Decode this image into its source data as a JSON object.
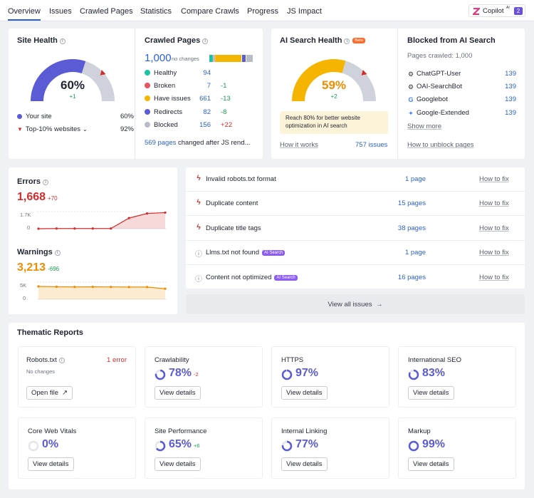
{
  "nav": {
    "tabs": [
      "Overview",
      "Issues",
      "Crawled Pages",
      "Statistics",
      "Compare Crawls",
      "Progress",
      "JS Impact"
    ],
    "copilot_label": "Copilot",
    "copilot_sup": "AI",
    "copilot_count": "2"
  },
  "site_health": {
    "title": "Site Health",
    "value": "60%",
    "change": "+1",
    "level": 0.6,
    "your_site_label": "Your site",
    "your_site_value": "60%",
    "top_label": "Top-10% websites",
    "top_value": "92%",
    "colors": {
      "main": "#5b5bd6",
      "rest": "#cfd2da"
    }
  },
  "crawled_pages": {
    "title": "Crawled Pages",
    "total": "1,000",
    "total_note": "no changes",
    "rows": [
      {
        "label": "Healthy",
        "value": "94",
        "delta": "",
        "color": "#1bc3a0"
      },
      {
        "label": "Broken",
        "value": "7",
        "delta": "-1",
        "color": "#e25563"
      },
      {
        "label": "Have issues",
        "value": "661",
        "delta": "-13",
        "color": "#f2b600"
      },
      {
        "label": "Redirects",
        "value": "82",
        "delta": "-8",
        "color": "#5b5bd6"
      },
      {
        "label": "Blocked",
        "value": "156",
        "delta": "+22",
        "color": "#b8bcc6"
      }
    ],
    "js_link": "569 pages",
    "js_text": "changed after JS rend..."
  },
  "ai_health": {
    "title": "AI Search Health",
    "beta": "Beta",
    "value": "59%",
    "change": "+2",
    "level": 0.59,
    "note": "Reach 80% for better website optimization in AI search",
    "how_link": "How it works",
    "issues_link": "757 issues",
    "colors": {
      "main": "#f5b400",
      "rest": "#cfd2da"
    }
  },
  "blocked_ai": {
    "title": "Blocked from AI Search",
    "crawled": "Pages crawled: 1,000",
    "rows": [
      {
        "label": "ChatGPT-User",
        "value": "139",
        "icon": "chatgpt-icon"
      },
      {
        "label": "OAI-SearchBot",
        "value": "139",
        "icon": "openai-icon"
      },
      {
        "label": "Googlebot",
        "value": "139",
        "icon": "google-icon"
      },
      {
        "label": "Google-Extended",
        "value": "139",
        "icon": "gemini-icon"
      }
    ],
    "show_more": "Show more",
    "unblock": "How to unblock pages"
  },
  "errors": {
    "title": "Errors",
    "value": "1,668",
    "delta": "+70",
    "ytick_top": "1.7K",
    "ytick_bottom": "0",
    "color": "#d42c2c"
  },
  "warnings": {
    "title": "Warnings",
    "value": "3,213",
    "delta": "-696",
    "ytick_top": "5K",
    "ytick_bottom": "0",
    "color": "#f08c00"
  },
  "chart_data": [
    {
      "type": "area",
      "title": "Errors",
      "x": [
        1,
        2,
        3,
        4,
        5,
        6,
        7,
        8
      ],
      "values": [
        0,
        20,
        20,
        20,
        20,
        1100,
        1580,
        1668
      ],
      "ylim": [
        0,
        1700
      ]
    },
    {
      "type": "area",
      "title": "Warnings",
      "x": [
        1,
        2,
        3,
        4,
        5,
        6,
        7,
        8
      ],
      "values": [
        3909,
        3800,
        3750,
        3780,
        3760,
        3720,
        3720,
        3213
      ],
      "ylim": [
        0,
        5000
      ]
    }
  ],
  "issues": {
    "rows": [
      {
        "label": "Invalid robots.txt format",
        "ai": "",
        "pages": "1 page",
        "fix": "How to fix",
        "icon": "error-icon"
      },
      {
        "label": "Duplicate content",
        "ai": "",
        "pages": "15 pages",
        "fix": "How to fix",
        "icon": "error-icon"
      },
      {
        "label": "Duplicate title tags",
        "ai": "",
        "pages": "38 pages",
        "fix": "How to fix",
        "icon": "error-icon"
      },
      {
        "label": "Llms.txt not found",
        "ai": "AI Search",
        "pages": "1 page",
        "fix": "How to fix",
        "icon": "notice-icon"
      },
      {
        "label": "Content not optimized",
        "ai": "AI Search",
        "pages": "16 pages",
        "fix": "How to fix",
        "icon": "notice-icon"
      }
    ],
    "view_all": "View all issues"
  },
  "thematic": {
    "title": "Thematic Reports",
    "robots": {
      "title": "Robots.txt",
      "errors": "1 error",
      "note": "No changes",
      "button": "Open file"
    },
    "cards": [
      {
        "title": "Crawlability",
        "value": "78%",
        "delta": "-2",
        "level": 0.78,
        "button": "View details"
      },
      {
        "title": "HTTPS",
        "value": "97%",
        "delta": "",
        "level": 0.97,
        "button": "View details"
      },
      {
        "title": "International SEO",
        "value": "83%",
        "delta": "",
        "level": 0.83,
        "button": "View details"
      },
      {
        "title": "Core Web Vitals",
        "value": "0%",
        "delta": "",
        "level": 0.0,
        "button": "View details"
      },
      {
        "title": "Site Performance",
        "value": "65%",
        "delta": "+6",
        "level": 0.65,
        "button": "View details"
      },
      {
        "title": "Internal Linking",
        "value": "77%",
        "delta": "",
        "level": 0.77,
        "button": "View details"
      },
      {
        "title": "Markup",
        "value": "99%",
        "delta": "",
        "level": 0.99,
        "button": "View details"
      }
    ],
    "ring_color": "#5b5bd6"
  }
}
